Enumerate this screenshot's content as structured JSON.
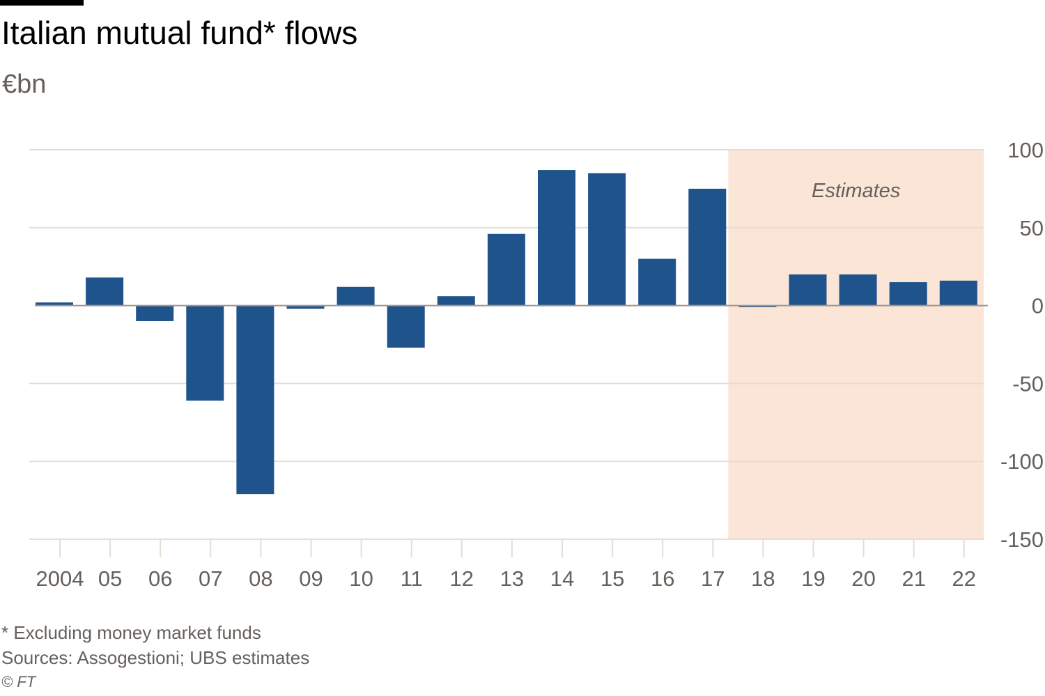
{
  "header": {
    "title": "Italian mutual fund* flows",
    "subtitle": "€bn"
  },
  "footer": {
    "note": "* Excluding money market funds",
    "sources": "Sources: Assogestioni; UBS estimates",
    "credit": "© FT"
  },
  "colors": {
    "bar": "#1f538b",
    "estimate_band": "#fae5d6",
    "gridline": "#e6ddd4",
    "axis_text": "#66605c"
  },
  "chart_data": {
    "type": "bar",
    "title": "Italian mutual fund* flows",
    "ylabel": "€bn",
    "xlabel": "",
    "categories": [
      "2004",
      "05",
      "06",
      "07",
      "08",
      "09",
      "10",
      "11",
      "12",
      "13",
      "14",
      "15",
      "16",
      "17",
      "18",
      "19",
      "20",
      "21",
      "22"
    ],
    "values": [
      2,
      18,
      -10,
      -61,
      -121,
      -2,
      12,
      -27,
      6,
      46,
      87,
      85,
      30,
      75,
      -1,
      20,
      20,
      15,
      16
    ],
    "ylim": [
      -150,
      100
    ],
    "yticks": [
      100,
      50,
      0,
      -50,
      -100,
      -150
    ],
    "ytick_side": "right",
    "grid": true,
    "annotation": {
      "text": "Estimates",
      "from_category": "18",
      "to_category": "22"
    }
  }
}
